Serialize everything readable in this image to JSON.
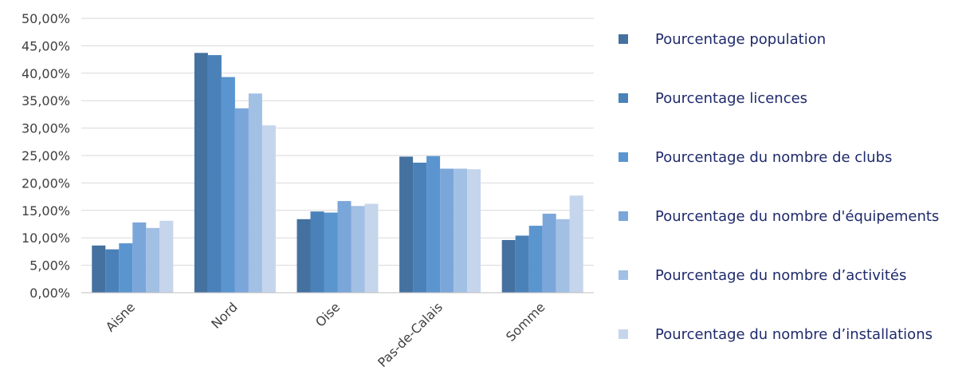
{
  "chart_data": {
    "type": "bar",
    "title": "",
    "xlabel": "",
    "ylabel": "",
    "ylim": [
      0,
      50
    ],
    "y_ticks": [
      "0,00%",
      "5,00%",
      "10,00%",
      "15,00%",
      "20,00%",
      "25,00%",
      "30,00%",
      "35,00%",
      "40,00%",
      "45,00%",
      "50,00%"
    ],
    "grid": true,
    "legend_position": "right",
    "categories": [
      "Aisne",
      "Nord",
      "Oise",
      "Pas-de-Calais",
      "Somme"
    ],
    "series": [
      {
        "name": "Pourcentage population",
        "color": "#44719f",
        "values": [
          8.6,
          43.7,
          13.4,
          24.8,
          9.6
        ]
      },
      {
        "name": "Pourcentage licences",
        "color": "#4a81b8",
        "values": [
          7.9,
          43.3,
          14.8,
          23.7,
          10.4
        ]
      },
      {
        "name": "Pourcentage du nombre de clubs",
        "color": "#5b95cf",
        "values": [
          9.0,
          39.3,
          14.6,
          24.9,
          12.2
        ]
      },
      {
        "name": "Pourcentage du nombre d'équipements",
        "color": "#7ba6d9",
        "values": [
          12.8,
          33.6,
          16.7,
          22.6,
          14.4
        ]
      },
      {
        "name": "Pourcentage du nombre d’activités",
        "color": "#a2bfe4",
        "values": [
          11.8,
          36.3,
          15.8,
          22.6,
          13.4
        ]
      },
      {
        "name": "Pourcentage du nombre d’installations",
        "color": "#c5d5ec",
        "values": [
          13.1,
          30.5,
          16.2,
          22.5,
          17.7
        ]
      }
    ]
  }
}
